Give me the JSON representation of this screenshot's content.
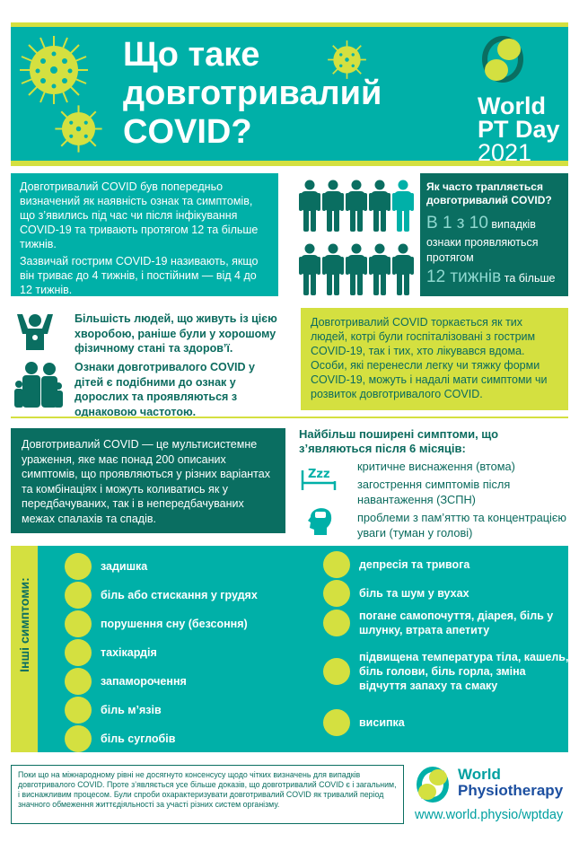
{
  "colors": {
    "teal": "#00b0a8",
    "dark_teal": "#0a6e61",
    "lime": "#d4e040"
  },
  "header": {
    "title_lines": [
      "Що таке",
      "довготривалий",
      "COVID?"
    ],
    "brand": {
      "line1": "World",
      "line2": "PT Day",
      "year": "2021"
    }
  },
  "intro": {
    "para1": "Довготривалий COVID був попередньо визначений як наявність ознак та симптомів, що з’явились під час чи після інфікування COVID-19 та тривають протягом 12 та більше тижнів.",
    "para2": "Зазвичай гострим COVID-19 називають, якщо він триває до 4 тижнів, і постійним — від 4 до 12 тижнів."
  },
  "frequency": {
    "people_total": 10,
    "people_highlighted": 1,
    "question": "Як часто трапляється довготривалий COVID?",
    "big1": "В 1 з 10",
    "text1": "випадків",
    "text2": "ознаки проявляються протягом",
    "big2": "12 тижнів",
    "text3": "та більше"
  },
  "fitness": {
    "text": "Більшість людей, що живуть із цією хворобою, раніше були у хорошому фізичному стані та здоров’ї.",
    "icon": "athlete-icon"
  },
  "children": {
    "text": "Ознаки довготривалого COVID у дітей є подібними до ознак у дорослих та проявляються з однаковою частотою.",
    "icon": "family-icon"
  },
  "affects": {
    "text": "Довготривалий COVID торкається як тих людей, котрі були госпіталізовані з гострим COVID-19, так і тих, хто лікувався вдома. Особи, які перенесли легку чи тяжку форми COVID-19, можуть і надалі мати симптоми чи розвиток довготривалого COVID."
  },
  "multisystem": {
    "text": "Довготривалий COVID — це мультисистемне ураження, яке має понад 200 описаних симптомів, що проявляються у різних варіантах та комбінаціях і можуть коливатись як у передбачуваних, так і в непередбачуваних межах спалахів та спадів."
  },
  "common": {
    "heading": "Найбільш поширені симптоми, що з’являються після 6 місяців:",
    "items": [
      "критичне виснаження (втома)",
      "загострення симптомів після навантаження (ЗСПН)",
      "проблеми з пам’яттю та концентрацією уваги (туман у голові)"
    ],
    "icons": [
      "sleep-bed-icon",
      "head-brain-icon"
    ]
  },
  "other": {
    "label": "Інші симптоми:",
    "left": [
      {
        "text": "задишка",
        "icon": "breathless-icon"
      },
      {
        "text": "біль або стискання  у грудях",
        "icon": "lungs-icon"
      },
      {
        "text": "порушення сну (безсоння)",
        "icon": "insomnia-icon"
      },
      {
        "text": "тахікардія",
        "icon": "heart-icon"
      },
      {
        "text": "запаморочення",
        "icon": "dizziness-icon"
      },
      {
        "text": "біль м’язів",
        "icon": "muscle-icon"
      },
      {
        "text": "біль суглобів",
        "icon": "joint-icon"
      }
    ],
    "right": [
      {
        "text": "депресія та тривога",
        "icon": "brain-icon"
      },
      {
        "text": "біль та шум у вухах",
        "icon": "ear-icon"
      },
      {
        "text": "погане самопочуття, діарея, біль  у шлунку, втрата апетиту",
        "icon": "stomach-icon"
      },
      {
        "text": "підвищена температура тіла, кашель, біль голови, біль горла, зміна відчуття запаху та смаку",
        "icon": "thermometer-icon"
      },
      {
        "text": "висипка",
        "icon": "rash-icon"
      }
    ]
  },
  "footer": {
    "note": "Поки що на міжнародному рівні не досягнуто консенсусу щодо чітких визначень для випадків довготривалого COVID. Проте з’являється усе більше доказів, що довготривалий COVID є і загальним, і виснажливим процесом. Були спроби охарактеризувати довготривалий COVID як тривалий період значного обмеження життєдіяльності за участі різних систем організму.",
    "logo_line1": "World",
    "logo_line2": "Physiotherapy",
    "url": "www.world.physio/wptday"
  }
}
